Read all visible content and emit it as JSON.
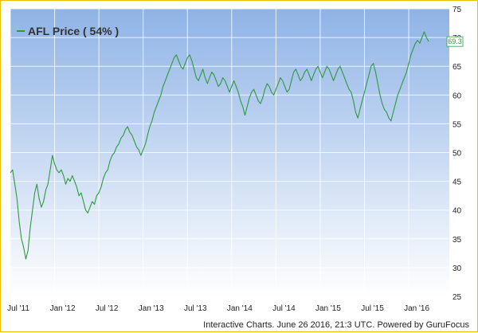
{
  "chart_data": {
    "type": "line",
    "title": "",
    "xlabel": "",
    "ylabel": "",
    "legend": {
      "label": "AFL Price ( 54% )",
      "placement": "top-left"
    },
    "series_color": "#2e9a3e",
    "background_gradient": [
      "#8fb3e6",
      "#ffffff"
    ],
    "grid": true,
    "ylim": [
      25,
      75
    ],
    "yticks": [
      25,
      30,
      35,
      40,
      45,
      50,
      55,
      60,
      65,
      70,
      75
    ],
    "xticks": [
      {
        "t": 0,
        "label": "Jul '11"
      },
      {
        "t": 6,
        "label": "Jan '12"
      },
      {
        "t": 12,
        "label": "Jul '12"
      },
      {
        "t": 18,
        "label": "Jan '13"
      },
      {
        "t": 24,
        "label": "Jul '13"
      },
      {
        "t": 30,
        "label": "Jan '14"
      },
      {
        "t": 36,
        "label": "Jul '14"
      },
      {
        "t": 42,
        "label": "Jan '15"
      },
      {
        "t": 48,
        "label": "Jul '15"
      },
      {
        "t": 54,
        "label": "Jan '16"
      }
    ],
    "xlim": [
      0,
      59.5
    ],
    "series": [
      {
        "name": "AFL Price",
        "points": [
          [
            0.0,
            46.5
          ],
          [
            0.3,
            47
          ],
          [
            0.6,
            44.5
          ],
          [
            0.9,
            42
          ],
          [
            1.2,
            38
          ],
          [
            1.5,
            35
          ],
          [
            1.8,
            33.5
          ],
          [
            2.1,
            31.5
          ],
          [
            2.4,
            33
          ],
          [
            2.7,
            37
          ],
          [
            3.0,
            40
          ],
          [
            3.3,
            43
          ],
          [
            3.6,
            44.5
          ],
          [
            3.9,
            42
          ],
          [
            4.2,
            40.5
          ],
          [
            4.5,
            41.5
          ],
          [
            4.8,
            43.5
          ],
          [
            5.1,
            44.5
          ],
          [
            5.4,
            47
          ],
          [
            5.7,
            49.5
          ],
          [
            6.0,
            48
          ],
          [
            6.3,
            47
          ],
          [
            6.6,
            46.5
          ],
          [
            6.9,
            47
          ],
          [
            7.2,
            46
          ],
          [
            7.5,
            44.5
          ],
          [
            7.8,
            45.5
          ],
          [
            8.1,
            45
          ],
          [
            8.4,
            46
          ],
          [
            8.7,
            45
          ],
          [
            9.0,
            44
          ],
          [
            9.3,
            42.5
          ],
          [
            9.6,
            43
          ],
          [
            9.9,
            41.5
          ],
          [
            10.2,
            40
          ],
          [
            10.5,
            39.5
          ],
          [
            10.8,
            40.5
          ],
          [
            11.1,
            41.5
          ],
          [
            11.4,
            41
          ],
          [
            11.7,
            42.5
          ],
          [
            12.0,
            43
          ],
          [
            12.3,
            44
          ],
          [
            12.6,
            45.5
          ],
          [
            12.9,
            46.5
          ],
          [
            13.2,
            47
          ],
          [
            13.5,
            48.5
          ],
          [
            13.8,
            49.5
          ],
          [
            14.1,
            50
          ],
          [
            14.4,
            51
          ],
          [
            14.7,
            51.5
          ],
          [
            15.0,
            52.5
          ],
          [
            15.3,
            53
          ],
          [
            15.6,
            54
          ],
          [
            15.9,
            54.5
          ],
          [
            16.2,
            53.5
          ],
          [
            16.5,
            53
          ],
          [
            16.8,
            52
          ],
          [
            17.1,
            51
          ],
          [
            17.4,
            50.5
          ],
          [
            17.7,
            49.5
          ],
          [
            18.0,
            50.5
          ],
          [
            18.3,
            51.5
          ],
          [
            18.6,
            53
          ],
          [
            18.9,
            54.5
          ],
          [
            19.2,
            55.5
          ],
          [
            19.5,
            57
          ],
          [
            19.8,
            58
          ],
          [
            20.1,
            59
          ],
          [
            20.4,
            60
          ],
          [
            20.7,
            61.5
          ],
          [
            21.0,
            62.5
          ],
          [
            21.3,
            63.5
          ],
          [
            21.6,
            64.5
          ],
          [
            21.9,
            65.5
          ],
          [
            22.2,
            66.5
          ],
          [
            22.5,
            67
          ],
          [
            22.8,
            66
          ],
          [
            23.1,
            65
          ],
          [
            23.4,
            64.5
          ],
          [
            23.7,
            65.5
          ],
          [
            24.0,
            66.5
          ],
          [
            24.3,
            67
          ],
          [
            24.6,
            66
          ],
          [
            24.9,
            64.5
          ],
          [
            25.2,
            63
          ],
          [
            25.5,
            62.5
          ],
          [
            25.8,
            63.5
          ],
          [
            26.1,
            64.5
          ],
          [
            26.4,
            63
          ],
          [
            26.7,
            62
          ],
          [
            27.0,
            63
          ],
          [
            27.3,
            64
          ],
          [
            27.6,
            63.5
          ],
          [
            27.9,
            62.5
          ],
          [
            28.2,
            61.5
          ],
          [
            28.5,
            62
          ],
          [
            28.8,
            63
          ],
          [
            29.1,
            62.5
          ],
          [
            29.4,
            61.5
          ],
          [
            29.7,
            60.5
          ],
          [
            30.0,
            61.5
          ],
          [
            30.3,
            62.5
          ],
          [
            30.6,
            61.5
          ],
          [
            30.9,
            60.5
          ],
          [
            31.2,
            59
          ],
          [
            31.5,
            58
          ],
          [
            31.8,
            56.5
          ],
          [
            32.1,
            58
          ],
          [
            32.4,
            59.5
          ],
          [
            32.7,
            60.5
          ],
          [
            33.0,
            61
          ],
          [
            33.3,
            60
          ],
          [
            33.6,
            59
          ],
          [
            33.9,
            58.5
          ],
          [
            34.2,
            59.5
          ],
          [
            34.5,
            61
          ],
          [
            34.8,
            62
          ],
          [
            35.1,
            61.5
          ],
          [
            35.4,
            60.5
          ],
          [
            35.7,
            60
          ],
          [
            36.0,
            61
          ],
          [
            36.3,
            62
          ],
          [
            36.6,
            63
          ],
          [
            36.9,
            62.5
          ],
          [
            37.2,
            61.5
          ],
          [
            37.5,
            60.5
          ],
          [
            37.8,
            61
          ],
          [
            38.1,
            62.5
          ],
          [
            38.4,
            64
          ],
          [
            38.7,
            64.5
          ],
          [
            39.0,
            63.5
          ],
          [
            39.3,
            62.5
          ],
          [
            39.6,
            63
          ],
          [
            39.9,
            64
          ],
          [
            40.2,
            64.5
          ],
          [
            40.5,
            63.5
          ],
          [
            40.8,
            62.5
          ],
          [
            41.1,
            63.5
          ],
          [
            41.4,
            64.5
          ],
          [
            41.7,
            65
          ],
          [
            42.0,
            64
          ],
          [
            42.3,
            63
          ],
          [
            42.6,
            64
          ],
          [
            42.9,
            65
          ],
          [
            43.2,
            64.5
          ],
          [
            43.5,
            63.5
          ],
          [
            43.8,
            62.5
          ],
          [
            44.1,
            63.5
          ],
          [
            44.4,
            64.5
          ],
          [
            44.7,
            65
          ],
          [
            45.0,
            64
          ],
          [
            45.3,
            63
          ],
          [
            45.6,
            62
          ],
          [
            45.9,
            61
          ],
          [
            46.2,
            60.5
          ],
          [
            46.5,
            59
          ],
          [
            46.8,
            57
          ],
          [
            47.1,
            56
          ],
          [
            47.4,
            57.5
          ],
          [
            47.7,
            59
          ],
          [
            48.0,
            60.5
          ],
          [
            48.3,
            62
          ],
          [
            48.6,
            63.5
          ],
          [
            48.9,
            65
          ],
          [
            49.2,
            65.5
          ],
          [
            49.5,
            64
          ],
          [
            49.8,
            62
          ],
          [
            50.1,
            60
          ],
          [
            50.4,
            58.5
          ],
          [
            50.7,
            57.5
          ],
          [
            51.0,
            57
          ],
          [
            51.3,
            56
          ],
          [
            51.6,
            55.5
          ],
          [
            51.9,
            57
          ],
          [
            52.2,
            58.5
          ],
          [
            52.5,
            60
          ],
          [
            52.8,
            61
          ],
          [
            53.1,
            62
          ],
          [
            53.4,
            63
          ],
          [
            53.7,
            64
          ],
          [
            54.0,
            65.5
          ],
          [
            54.3,
            67
          ],
          [
            54.6,
            68
          ],
          [
            54.9,
            69
          ],
          [
            55.2,
            69.5
          ],
          [
            55.5,
            69
          ],
          [
            55.8,
            70
          ],
          [
            56.1,
            71
          ],
          [
            56.4,
            70
          ],
          [
            56.7,
            69.3
          ]
        ],
        "last_value_label": "69.3"
      }
    ]
  },
  "footer": {
    "text": "Interactive Charts. June 26 2016, 21:3 UTC. Powered by GuruFocus"
  }
}
